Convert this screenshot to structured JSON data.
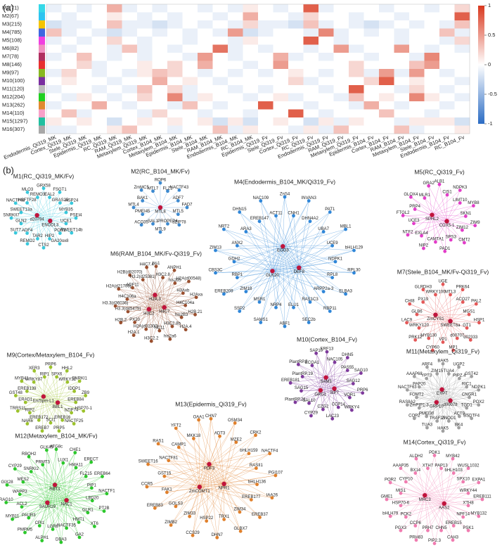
{
  "panel_a": {
    "label": "(a)",
    "type": "heatmap",
    "rows": [
      "M1(71)",
      "M2(67)",
      "M3(215)",
      "M4(785)",
      "M5(108)",
      "M6(82)",
      "M7(78)",
      "M8(146)",
      "M9(97)",
      "M10(100)",
      "M11(120)",
      "M12(204)",
      "M13(262)",
      "M14(110)",
      "M15(1297)",
      "M16(307)"
    ],
    "row_colors": [
      "#35d8e8",
      "#2ec4f0",
      "#f5c400",
      "#3f66e0",
      "#f040e0",
      "#f090c0",
      "#b03060",
      "#e83030",
      "#88b820",
      "#7a2fa0",
      "#bdbdbd",
      "#20d020",
      "#e08a30",
      "#f8a0c8",
      "#20c0a0",
      "#a8a8a8"
    ],
    "columns": [
      "Endodermis_Qi319_MK",
      "Cortex_Qi319_MK",
      "Stele_Qi319_MK",
      "Epidermis_Qi319_MK",
      "RC_Qi319_MK",
      "RAM_Qi319_MK",
      "Metaxylem_Qi319_MK",
      "Cortex_B104_MK",
      "Metaxylem_B104_MK",
      "Epidermis_B104_MK",
      "Stele_B104_MK",
      "RAM_B104_MK",
      "Endodermis_B104_MK",
      "RC_B104_MK",
      "Epidermis_Qi319_Fv",
      "Stele_Qi319_Fv",
      "Cortex_Qi319_Fv",
      "RC_Qi319_Fv",
      "Endodermis_Qi319_Fv",
      "RAM_Qi319_Fv",
      "Metaxylem_Qi319_Fv",
      "Epidermis_B104_Fv",
      "Cortex_B104_Fv",
      "RAM_B104_Fv",
      "Metaxylem_B104_Fv",
      "Stele_B104_Fv",
      "Endodermis_B104_Fv",
      "RC_B104_Fv"
    ],
    "values": [
      [
        -0.1,
        0,
        -0.1,
        0,
        0.4,
        -0.1,
        0,
        -0.1,
        0,
        0,
        -0.1,
        0,
        -0.1,
        0.1,
        0,
        -0.1,
        0,
        0.8,
        -0.1,
        0,
        0,
        0,
        -0.1,
        0,
        0,
        -0.1,
        0,
        0.2
      ],
      [
        0,
        -0.1,
        0,
        0,
        0.1,
        0,
        -0.1,
        0,
        -0.1,
        0,
        0,
        -0.1,
        0,
        0.4,
        0,
        0,
        -0.1,
        0.2,
        0,
        0,
        -0.1,
        0,
        0,
        -0.1,
        0,
        0,
        0,
        0.8
      ],
      [
        -0.2,
        -0.1,
        -0.1,
        0,
        0.3,
        -0.1,
        -0.1,
        -0.2,
        -0.1,
        0,
        -0.1,
        0,
        -0.1,
        0.2,
        -0.1,
        -0.1,
        -0.2,
        0.3,
        -0.1,
        0,
        -0.1,
        -0.2,
        -0.1,
        0,
        -0.1,
        0,
        -0.1,
        0.3
      ],
      [
        0.3,
        -0.1,
        0,
        -0.1,
        -0.2,
        -0.1,
        0,
        -0.1,
        0,
        -0.1,
        0,
        -0.1,
        0.5,
        -0.2,
        -0.1,
        0,
        0,
        -0.1,
        0.6,
        -0.1,
        0,
        -0.1,
        0,
        -0.1,
        0,
        0,
        0.3,
        -0.1
      ],
      [
        -0.1,
        0,
        -0.1,
        0,
        0.2,
        0,
        -0.1,
        0,
        0,
        -0.1,
        0,
        0,
        -0.1,
        0.1,
        0,
        0,
        0,
        0.8,
        0,
        -0.1,
        0,
        0,
        0,
        -0.1,
        0,
        0,
        -0.1,
        0.2
      ],
      [
        0,
        -0.1,
        0,
        0,
        -0.1,
        0.3,
        -0.1,
        0,
        -0.1,
        0,
        0,
        0.7,
        -0.1,
        0,
        -0.1,
        0,
        0,
        -0.1,
        0,
        0.5,
        -0.1,
        0,
        0,
        0.5,
        0,
        -0.1,
        0,
        -0.1
      ],
      [
        -0.1,
        0,
        0.3,
        0,
        -0.1,
        0,
        -0.1,
        0,
        0,
        -0.1,
        0.5,
        0,
        -0.1,
        0,
        0,
        0.4,
        -0.1,
        0,
        -0.1,
        0,
        0,
        -0.1,
        0,
        0,
        -0.1,
        0.6,
        0,
        0
      ],
      [
        0,
        0,
        0.2,
        -0.1,
        0,
        0,
        0.1,
        0,
        0.2,
        0,
        0.4,
        0,
        0,
        -0.1,
        0,
        0.5,
        0,
        0,
        0,
        0,
        0.2,
        0,
        0,
        0,
        0.3,
        0.5,
        0,
        0
      ],
      [
        -0.1,
        0.2,
        0,
        -0.1,
        0,
        -0.1,
        0.1,
        0.3,
        0.2,
        0,
        -0.1,
        0,
        -0.1,
        0,
        -0.1,
        0,
        0.1,
        0,
        -0.1,
        0,
        0.2,
        -0.1,
        0.5,
        -0.1,
        0.5,
        0,
        -0.1,
        0
      ],
      [
        0,
        0.1,
        0,
        0,
        -0.1,
        0,
        0,
        0.4,
        0,
        0.1,
        0,
        -0.1,
        0,
        0,
        0,
        0,
        0.2,
        -0.1,
        0,
        0,
        0,
        0.2,
        0.8,
        0,
        0.1,
        0,
        0,
        -0.1
      ],
      [
        -0.1,
        0,
        0,
        -0.1,
        0,
        -0.1,
        0.3,
        0,
        0.2,
        -0.1,
        0,
        0,
        -0.1,
        0,
        -0.1,
        0,
        0,
        0,
        -0.1,
        0,
        0.8,
        0,
        0,
        -0.1,
        0.2,
        0,
        -0.1,
        0
      ],
      [
        0,
        -0.1,
        0.1,
        0,
        -0.1,
        0,
        0.2,
        0,
        0.6,
        -0.1,
        0.1,
        0,
        0,
        -0.1,
        0,
        0.1,
        -0.1,
        0,
        0,
        -0.1,
        0.3,
        0,
        0.1,
        0,
        0.6,
        0.1,
        0,
        -0.1
      ],
      [
        -0.1,
        0,
        0,
        0.4,
        0,
        -0.1,
        0,
        0,
        -0.1,
        0.3,
        0,
        -0.1,
        0,
        0,
        0.8,
        0,
        0,
        -0.1,
        0,
        0,
        -0.1,
        0.4,
        0,
        -0.1,
        0,
        0,
        -0.1,
        0
      ],
      [
        0,
        0.3,
        -0.1,
        0,
        0,
        0,
        -0.1,
        0.2,
        0,
        0,
        -0.1,
        0,
        0,
        -0.1,
        0,
        0,
        0.8,
        0,
        -0.1,
        0,
        0,
        0,
        0.3,
        0,
        0,
        -0.1,
        0,
        0
      ],
      [
        0.1,
        0,
        0.1,
        0,
        -0.2,
        0,
        0.1,
        0,
        0.1,
        0,
        0.1,
        -0.2,
        0.1,
        -0.2,
        0,
        0.1,
        0,
        -0.2,
        0.1,
        -0.1,
        0.1,
        0,
        0,
        -0.1,
        0.1,
        0.1,
        0.1,
        -0.2
      ],
      [
        -0.1,
        -0.1,
        0,
        0,
        0.1,
        0.3,
        0,
        0,
        -0.1,
        0,
        0,
        0.3,
        -0.1,
        0.1,
        0,
        0,
        -0.1,
        0.1,
        -0.1,
        0.3,
        0,
        0,
        0,
        0.3,
        -0.1,
        0,
        0,
        0.1
      ]
    ],
    "colors": [
      "#2b6cc4",
      "#ffffff",
      "#d9381e"
    ],
    "lim": [
      -1,
      1
    ],
    "colorbar_ticks": [
      1,
      0.5,
      0,
      -0.5,
      -1
    ]
  },
  "panel_b": {
    "label": "(b)",
    "networks": [
      {
        "title": "M1(RC_Qi319_MK/Fv)",
        "color": "#38c8dc",
        "hubs": [
          "ENODL3",
          "d20794"
        ],
        "nodes": [
          "GRX58",
          "EAL2",
          "FSGT1",
          "GRAS25",
          "HSP24",
          "MYB35",
          "PSEI4",
          "UCE1",
          "SWEET14b",
          "POR1",
          "GA20ox8",
          "HIP2",
          "CTS2",
          "TAR2",
          "REMO2",
          "ADF4",
          "SUT7",
          "GLN2",
          "SNRKII7",
          "SWEET13a",
          "NACTF48",
          "HSFTF28",
          "MLO3",
          "REMO3"
        ]
      },
      {
        "title": "M2(RC_B104_MK/Fv)",
        "color": "#3d8ad0",
        "hubs": [
          "MTL8"
        ],
        "nodes": [
          "ROP6",
          "FLZ1",
          "NACTF43",
          "ADF7",
          "FAD7",
          "MTL5",
          "bZIP78",
          "PROPEP4",
          "MTL9",
          "SAL1",
          "ACO35",
          "PMEI45",
          "MTL4",
          "BAK1",
          "ZmMC5",
          "MTL7"
        ]
      },
      {
        "title": "M4(Endodermis_B104_MK/Qi319_Fv)",
        "color": "#2f86d8",
        "hubs": [
          "DEF8",
          "GLK20",
          "EGO3"
        ],
        "nodes": [
          "ZnS4",
          "CNH1",
          "INVAN3",
          "DHN4A2",
          "PAT1",
          "UBA7",
          "MBL1",
          "UCE9",
          "bHLH129",
          "NDPK1",
          "RPL30",
          "RPL8",
          "ELBA3",
          "ARPP2a-3",
          "RBP11",
          "RAS1C3",
          "SEC2b",
          "ELU1",
          "ABF1",
          "NRP4",
          "SAMS1",
          "MSR1",
          "SSP2",
          "ZIM18",
          "EREB209",
          "RBP1",
          "CBS3C",
          "GDH2",
          "ZIM13",
          "ANX2",
          "NRT2",
          "ARA3",
          "DHN15",
          "EREB147",
          "NAC109",
          "ACT11"
        ]
      },
      {
        "title": "M5(RC_Qi319_Fv)",
        "color": "#e23cc8",
        "hubs": [
          "COX5-1",
          "SPHL2"
        ],
        "nodes": [
          "ALB1",
          "CIS1",
          "NDPK3",
          "LIMT10",
          "MYB8",
          "SKN1",
          "ZIM9",
          "ZIM12",
          "CMT2",
          "SPS3",
          "PAD1",
          "CAMTA1",
          "NIP2",
          "EXLA4",
          "NTF2",
          "UCE3",
          "FTGL2",
          "PRP4",
          "GLOX4",
          "MLR1",
          "GRA2"
        ]
      },
      {
        "title": "M6(RAM_B104_MK/Fv-Qi319_Fv)",
        "color": "#9a5030",
        "hubs": [
          "H4C7",
          "H3C2",
          "H2A.3"
        ],
        "nodes": [
          "his1",
          "H3C2.8",
          "ANPH1",
          "his2b5",
          "H2A(d00548)",
          "H3Axb",
          "H2Axa",
          "H4C104a",
          "H2B.21",
          "his2B3",
          "H2A.4",
          "H3C2.8b",
          "his2a6",
          "HC11",
          "H3C2.2",
          "H2A(d01300)",
          "H2A.1",
          "PX20",
          "H2B.2",
          "H3.3(d45475)",
          "H3.3(d36036)",
          "H4C106a",
          "H2A(d21706)",
          "ADF11",
          "H2B(d82070)",
          "H3.2(d25381)",
          "H4C7.4"
        ]
      },
      {
        "title": "M7(Stele_B104_MK/Fv-Qi319_Fv)",
        "color": "#e45858",
        "hubs": [
          "SWEET6a",
          "ZmCYS1"
        ],
        "nodes": [
          "UGE",
          "MTL3",
          "PRK64",
          "ACO27",
          "PAL2",
          "MGS1",
          "HSP1",
          "GT1",
          "d02333",
          "d00707",
          "MP1",
          "VP1",
          "CYP60",
          "MYB130",
          "PRK12",
          "WRKY120",
          "LAC9",
          "GLB6",
          "CHI8",
          "PX19",
          "GLRDH3",
          "WRKY100"
        ]
      },
      {
        "title": "M9(Cortex/Metaxylem_B104_Fv)",
        "color": "#9cc22c",
        "hubs": [
          "BBL1",
          "En/Spm-L1"
        ],
        "nodes": [
          "PRP6",
          "SPX6",
          "HHL2",
          "WRKY32",
          "SNRKI1",
          "IDDP1",
          "ZB9",
          "EREB84",
          "HSP70-1",
          "bZIP74",
          "NACTF25",
          "EREB16",
          "PRP5",
          "SCI1",
          "EREB7",
          "EREB172",
          "NAR6",
          "RIP2",
          "TRRS11",
          "ERAD1",
          "GST48",
          "EREB139",
          "MYB41",
          "WRKY87",
          "XER3",
          "RIP1"
        ]
      },
      {
        "title": "M10(Cortex_B104_Fv)",
        "color": "#7e3a9c",
        "hubs": [
          "SIP7",
          "GRG1",
          "SAM3"
        ],
        "nodes": [
          "ERF13",
          "NAC105",
          "DHN5",
          "PAS55",
          "SAG10",
          "SAG12",
          "PRP6",
          "VOR1",
          "WRKY4",
          "CCP14",
          "LAC23",
          "CZG2",
          "CYP29",
          "SAL10",
          "PlantRP.21",
          "SAG15",
          "EREB181",
          "PlantRP.19",
          "PlantRP.5",
          "ECGA1",
          "SAP10"
        ]
      },
      {
        "title": "M11(Metaxylem_Qi319_Fv)",
        "color": "#a0a0a0",
        "hubs": [
          "d00078",
          "GRP10",
          "CYP7"
        ],
        "nodes": [
          "BAK5",
          "TUA4",
          "UGP2",
          "PIPZ.4",
          "GST42",
          "RIC1",
          "NDPK1",
          "CNGR1",
          "POX2",
          "TGD1",
          "BSDTF4",
          "ACT9",
          "BK4",
          "ZNOD1",
          "HAK5",
          "TRAF15",
          "TUA3",
          "PMEI30",
          "COP2",
          "ZmPIP1-3",
          "RAS8A2",
          "FOMT2",
          "NACTF63",
          "PAP20",
          "AAAP68",
          "YPT3",
          "ARF4",
          "ZIM15"
        ]
      },
      {
        "title": "M12(Metaxylem_B104_MK/Fv)",
        "color": "#2cc82c",
        "hubs": [
          "NAC1",
          "SAUR19",
          "RBT1"
        ],
        "nodes": [
          "ATG8c",
          "LUX1",
          "CHE1",
          "HMA11",
          "ERECT",
          "FLZ15",
          "EREB64",
          "PIP1",
          "NACTF1",
          "LBD20",
          "PT2B",
          "GLR1",
          "XT6",
          "HMT1",
          "GA2",
          "NACTF35",
          "DBA3",
          "LGR6",
          "ALPH1",
          "CPI1",
          "PMPM5",
          "PAUR3",
          "MYB11",
          "ACL2",
          "RAG10",
          "WAPP3",
          "GIX28",
          "MES2",
          "CYP29",
          "SNRKI2",
          "RBOH2",
          "PRMT3",
          "GLK49"
        ]
      },
      {
        "title": "M13(Epidermis_Qi319_Fv)",
        "color": "#e0802c",
        "hubs": [
          "NPR1",
          "ZmCOMT1",
          "PDF3"
        ],
        "nodes": [
          "CHN7",
          "ADT3",
          "OSM34",
          "MZE2",
          "CRK2",
          "bHLH159",
          "NACTF4",
          "RASII1",
          "PGI107",
          "bHLH136",
          "IAA26",
          "EREB177",
          "EREB37",
          "ZIM34",
          "GLBX7",
          "TRX1",
          "DHN7",
          "HSP22",
          "CCS29",
          "ZIM33",
          "ZIMB2",
          "GOLS3",
          "EREB83",
          "FAK1",
          "CCR5",
          "GST15",
          "SWEET16",
          "NACTF81",
          "RAS1",
          "CAMP1",
          "YFT2",
          "MKK18",
          "OAA1"
        ]
      },
      {
        "title": "M14(Cortex_Qi319_Fv)",
        "color": "#f07cb0",
        "hubs": [
          "AAS2",
          "MRC3"
        ],
        "nodes": [
          "PDK1",
          "PAP13",
          "MYB42",
          "bHLH103",
          "WUSL1032",
          "SPX10",
          "EXPA1",
          "WRKY44",
          "EREB111",
          "XTH8",
          "MYB132",
          "NPF14",
          "PSK1",
          "EREB15",
          "CAH3",
          "CHN5",
          "PIP2.3",
          "PRH7",
          "PRH83",
          "CCP6",
          "PGX3",
          "PCK2",
          "bHLH79",
          "HSP70-6",
          "GME1",
          "MIS1",
          "POR2",
          "CYP10",
          "AAAP35",
          "BX14",
          "ALDH2",
          "XTH7"
        ]
      }
    ]
  }
}
